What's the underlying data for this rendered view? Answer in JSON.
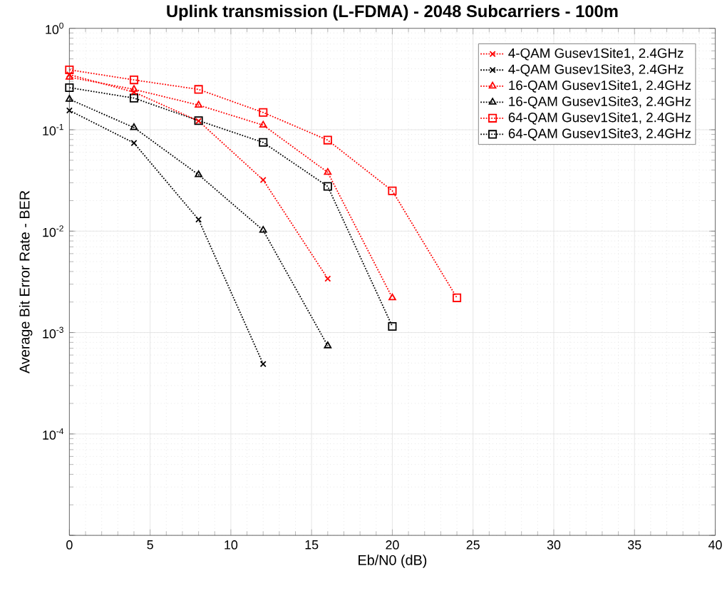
{
  "chart_data": {
    "type": "line",
    "title": "Uplink transmission (L-FDMA) - 2048 Subcarriers - 100m",
    "xlabel": "Eb/N0 (dB)",
    "ylabel": "Average Bit Error Rate - BER",
    "x": [
      0,
      4,
      8,
      12,
      16,
      20,
      24
    ],
    "series": [
      {
        "name": "4-QAM Gusev1Site1, 2.4GHz",
        "color": "#ff0000",
        "marker": "cross",
        "values": [
          0.35,
          0.235,
          0.122,
          0.032,
          0.0034,
          null,
          null
        ]
      },
      {
        "name": "4-QAM Gusev1Site3, 2.4GHz",
        "color": "#000000",
        "marker": "cross",
        "values": [
          0.155,
          0.074,
          0.013,
          0.00049,
          null,
          null,
          null
        ]
      },
      {
        "name": "16-QAM Gusev1Site1, 2.4GHz",
        "color": "#ff0000",
        "marker": "triangle",
        "values": [
          0.33,
          0.25,
          0.175,
          0.111,
          0.038,
          0.0022,
          null
        ]
      },
      {
        "name": "16-QAM Gusev1Site3, 2.4GHz",
        "color": "#000000",
        "marker": "triangle",
        "values": [
          0.2,
          0.105,
          0.036,
          0.0102,
          0.00074,
          null,
          null
        ]
      },
      {
        "name": "64-QAM Gusev1Site1, 2.4GHz",
        "color": "#ff0000",
        "marker": "square",
        "values": [
          0.39,
          0.31,
          0.25,
          0.148,
          0.079,
          0.025,
          0.0022
        ]
      },
      {
        "name": "64-QAM Gusev1Site3, 2.4GHz",
        "color": "#000000",
        "marker": "square",
        "values": [
          0.26,
          0.205,
          0.123,
          0.075,
          0.0276,
          0.00115,
          null
        ]
      }
    ],
    "xlim": [
      0,
      40
    ],
    "xticks": [
      0,
      5,
      10,
      15,
      20,
      25,
      30,
      35,
      40
    ],
    "ylim": [
      1e-05,
      1
    ],
    "yticks": [
      {
        "value": 1e-05,
        "label": null
      },
      {
        "value": 0.0001,
        "label": "10$^{-4}$"
      },
      {
        "value": 0.001,
        "label": "10$^{-3}$"
      },
      {
        "value": 0.01,
        "label": "10$^{-2}$"
      },
      {
        "value": 0.1,
        "label": "10$^{-1}$"
      },
      {
        "value": 1,
        "label": "10$^{0}$"
      }
    ],
    "log": "y",
    "grid": true,
    "legend": "top right",
    "line_style": "dotted"
  }
}
